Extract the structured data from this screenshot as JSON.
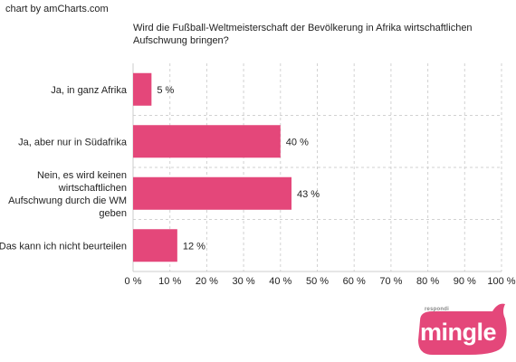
{
  "credit": "chart by amCharts.com",
  "logo": {
    "small_text": "respondi",
    "main_text": "mingle",
    "color": "#e4477a"
  },
  "chart_data": {
    "type": "bar",
    "orientation": "horizontal",
    "title": "Wird die Fußball-Weltmeisterschaft der Bevölkerung in Afrika wirtschaftlichen Aufschwung bringen?",
    "categories": [
      [
        "Ja, in ganz Afrika"
      ],
      [
        "Ja, aber nur in Südafrika"
      ],
      [
        "Nein, es wird keinen",
        "wirtschaftlichen",
        "Aufschwung durch die WM",
        "geben"
      ],
      [
        "Das kann ich nicht beurteilen"
      ]
    ],
    "values": [
      5,
      40,
      43,
      12
    ],
    "value_labels": [
      "5 %",
      "40 %",
      "43 %",
      "12 %"
    ],
    "xlim": [
      0,
      100
    ],
    "xticks": [
      0,
      10,
      20,
      30,
      40,
      50,
      60,
      70,
      80,
      90,
      100
    ],
    "xtick_labels": [
      "0 %",
      "10 %",
      "20 %",
      "30 %",
      "40 %",
      "50 %",
      "60 %",
      "70 %",
      "80 %",
      "90 %",
      "100 %"
    ],
    "bar_color": "#e4477a",
    "grid": true,
    "xlabel": "",
    "ylabel": ""
  }
}
